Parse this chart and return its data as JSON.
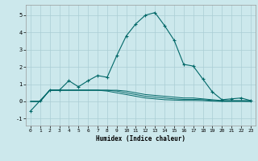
{
  "xlabel": "Humidex (Indice chaleur)",
  "bg_color": "#cce8ec",
  "grid_color": "#aacdd4",
  "line_color": "#006868",
  "xlim": [
    -0.5,
    23.5
  ],
  "ylim": [
    -1.4,
    5.6
  ],
  "xticks": [
    0,
    1,
    2,
    3,
    4,
    5,
    6,
    7,
    8,
    9,
    10,
    11,
    12,
    13,
    14,
    15,
    16,
    17,
    18,
    19,
    20,
    21,
    22,
    23
  ],
  "yticks": [
    -1,
    0,
    1,
    2,
    3,
    4,
    5
  ],
  "main_x": [
    0,
    1,
    2,
    3,
    4,
    5,
    6,
    7,
    8,
    9,
    10,
    11,
    12,
    13,
    14,
    15,
    16,
    17,
    18,
    19,
    20,
    21,
    22,
    23
  ],
  "main_y": [
    -0.55,
    0.05,
    0.65,
    0.65,
    1.2,
    0.85,
    1.2,
    1.5,
    1.4,
    2.65,
    3.8,
    4.5,
    5.0,
    5.15,
    4.4,
    3.55,
    2.15,
    2.05,
    1.3,
    0.55,
    0.1,
    0.15,
    0.2,
    0.05
  ],
  "flat1_x": [
    0,
    1,
    2,
    3,
    4,
    5,
    6,
    7,
    8,
    9,
    10,
    11,
    12,
    13,
    14,
    15,
    16,
    17,
    18,
    19,
    20,
    21,
    22,
    23
  ],
  "flat1_y": [
    0.0,
    0.0,
    0.65,
    0.65,
    0.65,
    0.65,
    0.65,
    0.65,
    0.65,
    0.65,
    0.6,
    0.5,
    0.4,
    0.35,
    0.3,
    0.25,
    0.2,
    0.2,
    0.15,
    0.1,
    0.05,
    0.05,
    0.05,
    0.05
  ],
  "flat2_x": [
    0,
    1,
    2,
    3,
    4,
    5,
    6,
    7,
    8,
    9,
    10,
    11,
    12,
    13,
    14,
    15,
    16,
    17,
    18,
    19,
    20,
    21,
    22,
    23
  ],
  "flat2_y": [
    0.0,
    0.0,
    0.65,
    0.65,
    0.65,
    0.65,
    0.65,
    0.65,
    0.65,
    0.6,
    0.5,
    0.4,
    0.3,
    0.25,
    0.2,
    0.15,
    0.12,
    0.12,
    0.1,
    0.05,
    0.02,
    0.02,
    0.02,
    0.0
  ],
  "flat3_x": [
    0,
    1,
    2,
    3,
    4,
    5,
    6,
    7,
    8,
    9,
    10,
    11,
    12,
    13,
    14,
    15,
    16,
    17,
    18,
    19,
    20,
    21,
    22,
    23
  ],
  "flat3_y": [
    0.0,
    0.0,
    0.65,
    0.65,
    0.65,
    0.65,
    0.65,
    0.65,
    0.6,
    0.5,
    0.4,
    0.3,
    0.2,
    0.15,
    0.1,
    0.08,
    0.06,
    0.06,
    0.05,
    0.02,
    0.0,
    0.0,
    0.0,
    0.0
  ]
}
